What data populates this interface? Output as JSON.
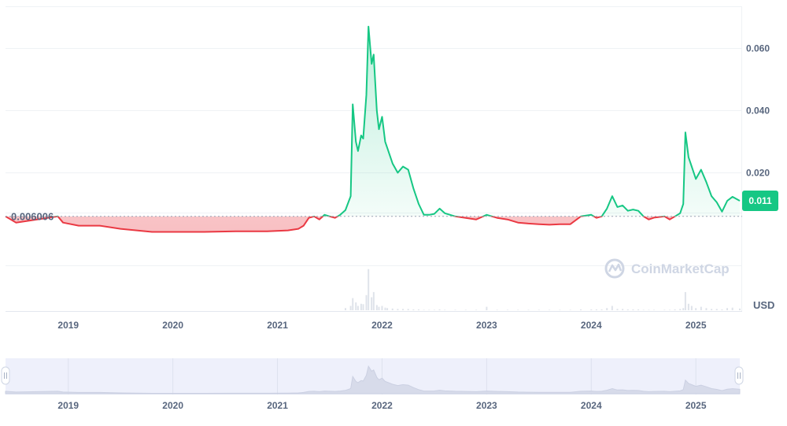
{
  "chart_data": {
    "type": "area",
    "baseline_label": "0.006006",
    "baseline_value": 0.006006,
    "current_price_label": "0.011",
    "currency": "USD",
    "watermark": "CoinMarketCap",
    "y_ticks": [
      "0.060",
      "0.040",
      "0.020"
    ],
    "y_tick_values": [
      0.06,
      0.04,
      0.02
    ],
    "ylim": [
      -0.01,
      0.073
    ],
    "x_ticks": [
      "2019",
      "2020",
      "2021",
      "2022",
      "2023",
      "2024",
      "2025"
    ],
    "x_tick_values": [
      2019,
      2020,
      2021,
      2022,
      2023,
      2024,
      2025
    ],
    "xlim": [
      2018.4,
      2025.42
    ],
    "colors": {
      "up": "#16c784",
      "down": "#ea3943",
      "badge": "#16c784",
      "navigator": "#eef0fb"
    },
    "series": [
      {
        "x": [
          2018.4,
          2018.5,
          2018.9,
          2018.95,
          2019.1,
          2019.3,
          2019.5,
          2019.8,
          2020.0,
          2020.3,
          2020.6,
          2020.9,
          2021.1,
          2021.2,
          2021.25,
          2021.3,
          2021.35,
          2021.4,
          2021.45,
          2021.5,
          2021.55,
          2021.6,
          2021.65,
          2021.7,
          2021.72,
          2021.75,
          2021.77,
          2021.8,
          2021.82,
          2021.85,
          2021.87,
          2021.9,
          2021.92,
          2021.95,
          2021.97,
          2022.0,
          2022.03,
          2022.05,
          2022.1,
          2022.15,
          2022.2,
          2022.25,
          2022.3,
          2022.35,
          2022.4,
          2022.45,
          2022.5,
          2022.55,
          2022.6,
          2022.7,
          2022.8,
          2022.9,
          2023.0,
          2023.1,
          2023.2,
          2023.3,
          2023.4,
          2023.5,
          2023.6,
          2023.7,
          2023.8,
          2023.9,
          2024.0,
          2024.05,
          2024.1,
          2024.15,
          2024.2,
          2024.25,
          2024.3,
          2024.35,
          2024.4,
          2024.45,
          2024.5,
          2024.55,
          2024.6,
          2024.7,
          2024.75,
          2024.8,
          2024.85,
          2024.88,
          2024.9,
          2024.93,
          2024.96,
          2025.0,
          2025.05,
          2025.1,
          2025.15,
          2025.2,
          2025.25,
          2025.3,
          2025.35,
          2025.42
        ],
        "y": [
          0.006,
          0.004,
          0.006,
          0.004,
          0.003,
          0.003,
          0.002,
          0.001,
          0.001,
          0.001,
          0.0012,
          0.0012,
          0.0015,
          0.002,
          0.003,
          0.0055,
          0.006,
          0.005,
          0.0065,
          0.006,
          0.0055,
          0.0065,
          0.008,
          0.0125,
          0.042,
          0.03,
          0.027,
          0.032,
          0.031,
          0.045,
          0.067,
          0.055,
          0.058,
          0.04,
          0.034,
          0.038,
          0.03,
          0.028,
          0.023,
          0.02,
          0.022,
          0.021,
          0.015,
          0.01,
          0.0065,
          0.0065,
          0.0068,
          0.0085,
          0.007,
          0.006,
          0.0055,
          0.005,
          0.0065,
          0.0055,
          0.005,
          0.004,
          0.0037,
          0.0035,
          0.0033,
          0.0035,
          0.0035,
          0.006,
          0.0065,
          0.0055,
          0.006,
          0.0085,
          0.0125,
          0.009,
          0.0095,
          0.0078,
          0.0082,
          0.0078,
          0.006,
          0.005,
          0.0056,
          0.006,
          0.005,
          0.006,
          0.007,
          0.01,
          0.033,
          0.025,
          0.022,
          0.018,
          0.021,
          0.017,
          0.0125,
          0.0105,
          0.0075,
          0.011,
          0.0123,
          0.011
        ],
        "volume": [
          0,
          0,
          0,
          0,
          0,
          0,
          0,
          0,
          0,
          0,
          0,
          0,
          0,
          0,
          0,
          0,
          0,
          0,
          0,
          0,
          0,
          0,
          0.05,
          0.1,
          0.28,
          0.18,
          0.1,
          0.15,
          0.14,
          0.35,
          0.95,
          0.3,
          0.42,
          0.12,
          0.08,
          0.1,
          0.06,
          0.05,
          0.04,
          0.03,
          0.03,
          0.03,
          0.02,
          0.02,
          0.01,
          0.01,
          0.01,
          0.02,
          0.01,
          0.01,
          0.01,
          0.01,
          0.08,
          0.01,
          0.01,
          0.01,
          0.01,
          0.01,
          0.01,
          0.01,
          0.01,
          0.02,
          0.02,
          0.02,
          0.02,
          0.05,
          0.1,
          0.03,
          0.03,
          0.02,
          0.02,
          0.02,
          0.01,
          0.01,
          0.01,
          0.01,
          0.01,
          0.02,
          0.03,
          0.05,
          0.42,
          0.15,
          0.1,
          0.05,
          0.08,
          0.05,
          0.03,
          0.03,
          0.02,
          0.05,
          0.06,
          0.04
        ]
      }
    ]
  }
}
